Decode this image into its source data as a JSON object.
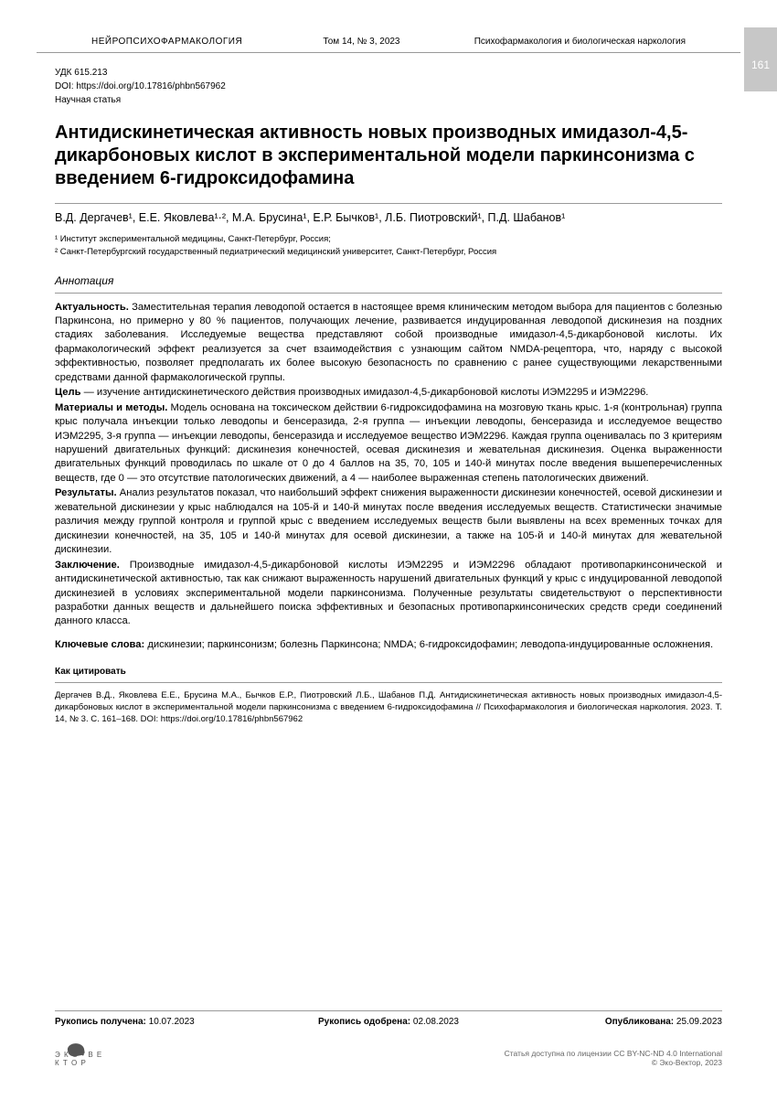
{
  "page_number": "161",
  "header": {
    "left": "НЕЙРОПСИХОФАРМАКОЛОГИЯ",
    "mid": "Том 14, № 3, 2023",
    "right": "Психофармакология и биологическая наркология"
  },
  "meta": {
    "udc": "УДК 615.213",
    "doi": "DOI: https://doi.org/10.17816/phbn567962",
    "type": "Научная статья"
  },
  "title": "Антидискинетическая активность новых производных имидазол-4,5-дикарбоновых кислот в экспериментальной модели паркинсонизма с введением 6-гидроксидофамина",
  "authors": "В.Д. Дергачев¹, Е.Е. Яковлева¹·², М.А. Брусина¹, Е.Р. Бычков¹, Л.Б. Пиотровский¹, П.Д. Шабанов¹",
  "affil1": "¹ Институт экспериментальной медицины, Санкт-Петербург, Россия;",
  "affil2": "² Санкт-Петербургский государственный педиатрический медицинский университет, Санкт-Петербург, Россия",
  "abstract_heading": "Аннотация",
  "abs": {
    "p1a": "Актуальность.",
    "p1b": " Заместительная терапия леводопой остается в настоящее время клиническим методом выбора для пациентов с болезнью Паркинсона, но примерно у 80 % пациентов, получающих лечение, развивается индуцированная леводопой дискинезия на поздних стадиях заболевания. Исследуемые вещества представляют собой производные имидазол-4,5-дикарбоновой кислоты. Их фармакологический эффект реализуется за счет взаимодействия с узнающим сайтом NMDA-рецептора, что, наряду с высокой эффективностью, позволяет предполагать их более высокую безопасность по сравнению с ранее существующими лекарственными средствами данной фармакологической группы.",
    "p2a": "Цель",
    "p2b": " — изучение антидискинетического действия производных имидазол-4,5-дикарбоновой кислоты ИЭМ2295 и ИЭМ2296.",
    "p3a": "Материалы и методы.",
    "p3b": " Модель основана на токсическом действии 6-гидроксидофамина на мозговую ткань крыс. 1-я (контрольная) группа крыс получала инъекции только леводопы и бенсеразида, 2-я группа — инъекции леводопы, бенсеразида и исследуемое вещество ИЭМ2295, 3-я группа — инъекции леводопы, бенсеразида и исследуемое вещество ИЭМ2296. Каждая группа оценивалась по 3 критериям нарушений двигательных функций: дискинезия конечностей, осевая дискинезия и жевательная дискинезия. Оценка выраженности двигательных функций проводилась по шкале от 0 до 4 баллов на 35, 70, 105 и 140-й минутах после введения вышеперечисленных веществ, где 0 — это отсутствие патологических движений, а 4 — наиболее выраженная степень патологических движений.",
    "p4a": "Результаты.",
    "p4b": " Анализ результатов показал, что наибольший эффект снижения выраженности дискинезии конечностей, осевой дискинезии и жевательной дискинезии у крыс наблюдался на 105-й и 140-й минутах после введения исследуемых веществ. Статистически значимые различия между группой контроля и группой крыс с введением исследуемых веществ были выявлены на всех временных точках для дискинезии конечностей, на 35, 105 и 140-й минутах для осевой дискинезии, а также на 105-й и 140-й минутах для жевательной дискинезии.",
    "p5a": "Заключение.",
    "p5b": " Производные имидазол-4,5-дикарбоновой кислоты ИЭМ2295 и ИЭМ2296 обладают противопаркинсонической и антидискинетической активностью, так как снижают выраженность нарушений двигательных функций у крыс с индуцированной леводопой дискинезией в условиях экспериментальной модели паркинсонизма. Полученные результаты свидетельствуют о перспективности разработки данных веществ и дальнейшего поиска эффективных и безопасных противопаркинсонических средств среди соединений данного класса."
  },
  "kw_label": "Ключевые слова:",
  "kw": " дискинезии; паркинсонизм; болезнь Паркинсона; NMDA; 6-гидроксидофамин; леводопа-индуцированные осложнения.",
  "cite_heading": "Как цитировать",
  "cite": "Дергачев В.Д., Яковлева Е.Е., Брусина М.А., Бычков Е.Р., Пиотровский Л.Б., Шабанов П.Д. Антидискинетическая активность новых производных имидазол-4,5-дикарбоновых кислот в экспериментальной модели паркинсонизма с введением 6-гидроксидофамина // Психофармакология и биологическая наркология. 2023. Т. 14, № 3. С. 161–168. DOI: https://doi.org/10.17816/phbn567962",
  "dates": {
    "recv_l": "Рукопись получена:",
    "recv_v": " 10.07.2023",
    "appr_l": "Рукопись одобрена:",
    "appr_v": " 02.08.2023",
    "publ_l": "Опубликована:",
    "publ_v": " 25.09.2023"
  },
  "logo_text": "Э К О • В Е К Т О Р",
  "license1": "Статья доступна по лицензии CC BY-NC-ND 4.0 International",
  "license2": "© Эко-Вектор, 2023",
  "colors": {
    "text": "#000000",
    "muted": "#666666",
    "rule": "#999999",
    "tab": "#c7c7c7",
    "bg": "#ffffff"
  }
}
